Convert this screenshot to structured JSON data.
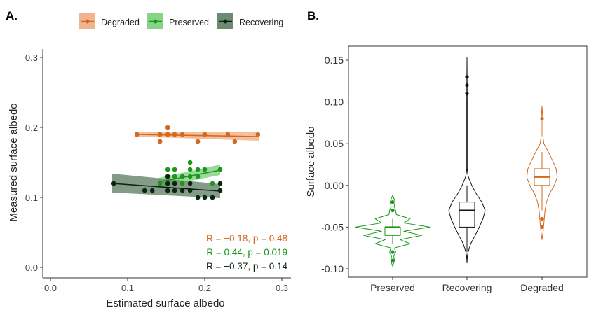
{
  "chart_data": [
    {
      "panel_label": "A.",
      "type": "scatter",
      "xlabel": "Estimated surface albedo",
      "ylabel": "Measured surface albedo",
      "xlim": [
        -0.01,
        0.31
      ],
      "ylim": [
        -0.01,
        0.31
      ],
      "x_ticks": [
        "0.0",
        "0.1",
        "0.2",
        "0.3"
      ],
      "y_ticks": [
        "0.0",
        "0.1",
        "0.2",
        "0.3"
      ],
      "grid": false,
      "legend_position": "top",
      "series": [
        {
          "name": "Degraded",
          "color": "#d2691e",
          "band_color": "#f2b48c",
          "points": [
            [
              0.112,
              0.19
            ],
            [
              0.142,
              0.19
            ],
            [
              0.142,
              0.18
            ],
            [
              0.152,
              0.2
            ],
            [
              0.152,
              0.19
            ],
            [
              0.161,
              0.19
            ],
            [
              0.171,
              0.19
            ],
            [
              0.191,
              0.18
            ],
            [
              0.2,
              0.19
            ],
            [
              0.23,
              0.19
            ],
            [
              0.239,
              0.18
            ],
            [
              0.269,
              0.19
            ]
          ],
          "fit": {
            "x": [
              0.11,
              0.27
            ],
            "y": [
              0.19,
              0.187
            ],
            "lower": [
              0.187,
              0.181
            ],
            "upper": [
              0.193,
              0.193
            ]
          },
          "annotation": "R = −0.18, p = 0.48"
        },
        {
          "name": "Preserved",
          "color": "#1a961a",
          "band_color": "#86d486",
          "points": [
            [
              0.181,
              0.15
            ],
            [
              0.152,
              0.14
            ],
            [
              0.161,
              0.14
            ],
            [
              0.181,
              0.14
            ],
            [
              0.191,
              0.14
            ],
            [
              0.2,
              0.14
            ],
            [
              0.22,
              0.14
            ],
            [
              0.152,
              0.13
            ],
            [
              0.161,
              0.13
            ],
            [
              0.171,
              0.13
            ],
            [
              0.181,
              0.13
            ],
            [
              0.191,
              0.13
            ],
            [
              0.142,
              0.12
            ],
            [
              0.171,
              0.12
            ],
            [
              0.21,
              0.12
            ]
          ],
          "fit": {
            "x": [
              0.14,
              0.22
            ],
            "y": [
              0.122,
              0.139
            ],
            "lower": [
              0.115,
              0.132
            ],
            "upper": [
              0.128,
              0.147
            ]
          },
          "annotation": "R = 0.44, p = 0.019"
        },
        {
          "name": "Recovering",
          "color": "#0b2410",
          "band_color": "#6f8a72",
          "points": [
            [
              0.082,
              0.12
            ],
            [
              0.152,
              0.13
            ],
            [
              0.152,
              0.12
            ],
            [
              0.161,
              0.12
            ],
            [
              0.181,
              0.12
            ],
            [
              0.22,
              0.12
            ],
            [
              0.122,
              0.11
            ],
            [
              0.132,
              0.11
            ],
            [
              0.152,
              0.11
            ],
            [
              0.161,
              0.11
            ],
            [
              0.171,
              0.11
            ],
            [
              0.181,
              0.11
            ],
            [
              0.22,
              0.11
            ],
            [
              0.191,
              0.1
            ],
            [
              0.2,
              0.1
            ],
            [
              0.21,
              0.1
            ]
          ],
          "fit": {
            "x": [
              0.08,
              0.22
            ],
            "y": [
              0.12,
              0.109
            ],
            "lower": [
              0.107,
              0.099
            ],
            "upper": [
              0.134,
              0.119
            ]
          },
          "annotation": "R = −0.37, p = 0.14"
        }
      ]
    },
    {
      "panel_label": "B.",
      "type": "violin+box",
      "xlabel": "",
      "ylabel": "Surface albedo",
      "categories": [
        "Preserved",
        "Recovering",
        "Degraded"
      ],
      "ylim": [
        -0.105,
        0.165
      ],
      "y_ticks": [
        "-0.10",
        "-0.05",
        "0.00",
        "0.05",
        "0.10",
        "0.15"
      ],
      "grid": false,
      "groups": [
        {
          "name": "Preserved",
          "color": "#1a961a",
          "box": {
            "whisker_low": -0.07,
            "q1": -0.06,
            "median": -0.05,
            "q3": -0.05,
            "whisker_high": -0.04
          },
          "outliers": [
            -0.02,
            -0.03,
            -0.08,
            -0.09
          ],
          "density": [
            [
              -0.097,
              0
            ],
            [
              -0.09,
              0.05
            ],
            [
              -0.085,
              0.03
            ],
            [
              -0.08,
              0.08
            ],
            [
              -0.075,
              0.05
            ],
            [
              -0.07,
              0.47
            ],
            [
              -0.065,
              0.2
            ],
            [
              -0.06,
              0.78
            ],
            [
              -0.055,
              0.3
            ],
            [
              -0.05,
              1.0
            ],
            [
              -0.045,
              0.3
            ],
            [
              -0.04,
              0.47
            ],
            [
              -0.035,
              0.1
            ],
            [
              -0.03,
              0.08
            ],
            [
              -0.025,
              0.04
            ],
            [
              -0.02,
              0.07
            ],
            [
              -0.015,
              0.03
            ],
            [
              -0.012,
              0
            ]
          ]
        },
        {
          "name": "Recovering",
          "color": "#111111",
          "box": {
            "whisker_low": -0.08,
            "q1": -0.05,
            "median": -0.03,
            "q3": -0.02,
            "whisker_high": 0.0
          },
          "outliers": [
            0.11,
            0.12,
            0.13
          ],
          "density": [
            [
              -0.093,
              0
            ],
            [
              -0.085,
              0.01
            ],
            [
              -0.08,
              0.03
            ],
            [
              -0.07,
              0.1
            ],
            [
              -0.06,
              0.22
            ],
            [
              -0.05,
              0.33
            ],
            [
              -0.04,
              0.43
            ],
            [
              -0.03,
              0.49
            ],
            [
              -0.02,
              0.4
            ],
            [
              -0.01,
              0.25
            ],
            [
              0.0,
              0.13
            ],
            [
              0.01,
              0.04
            ],
            [
              0.014,
              0.02
            ],
            [
              0.02,
              0.006
            ],
            [
              0.1,
              0.006
            ],
            [
              0.153,
              0
            ]
          ]
        },
        {
          "name": "Degraded",
          "color": "#d2691e",
          "box": {
            "whisker_low": -0.03,
            "q1": 0.0,
            "median": 0.01,
            "q3": 0.02,
            "whisker_high": 0.04
          },
          "outliers": [
            0.08,
            -0.04,
            -0.05
          ],
          "density": [
            [
              -0.065,
              0
            ],
            [
              -0.055,
              0.03
            ],
            [
              -0.04,
              0.06
            ],
            [
              -0.03,
              0.08
            ],
            [
              -0.02,
              0.12
            ],
            [
              -0.01,
              0.2
            ],
            [
              0.0,
              0.33
            ],
            [
              0.01,
              0.41
            ],
            [
              0.02,
              0.38
            ],
            [
              0.03,
              0.28
            ],
            [
              0.04,
              0.17
            ],
            [
              0.05,
              0.05
            ],
            [
              0.06,
              0.02
            ],
            [
              0.08,
              0.02
            ],
            [
              0.095,
              0
            ]
          ]
        }
      ]
    }
  ]
}
